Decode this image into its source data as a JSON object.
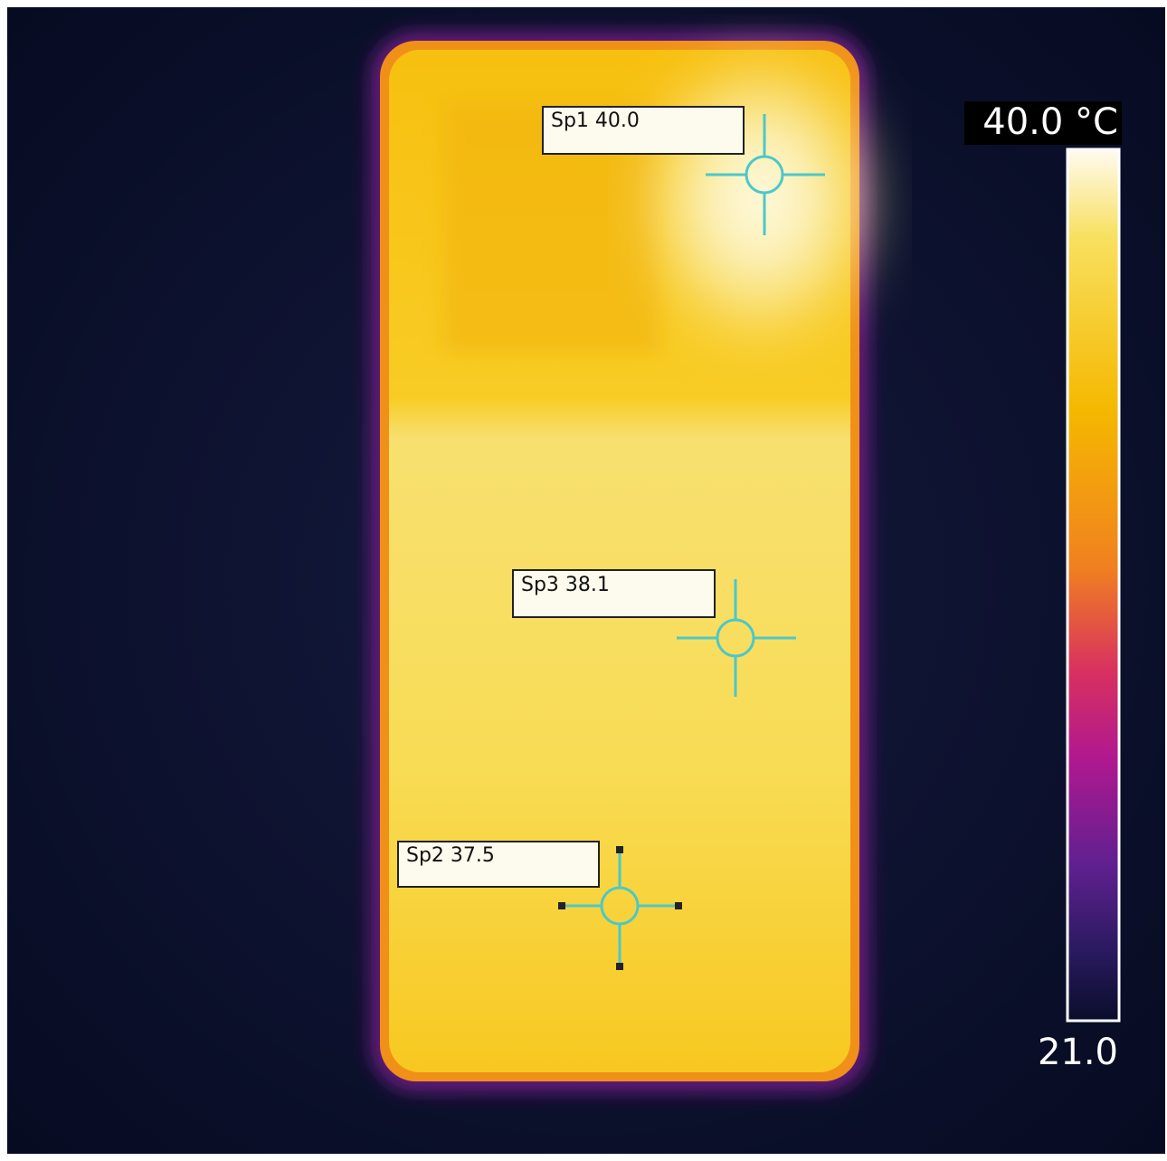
{
  "spots": [
    {
      "label": "Sp1 40.0"
    },
    {
      "label": "Sp3 38.1"
    },
    {
      "label": "Sp2 37.5"
    }
  ],
  "scale": {
    "max_label": "40.0 °C",
    "min_label": "21.0"
  }
}
